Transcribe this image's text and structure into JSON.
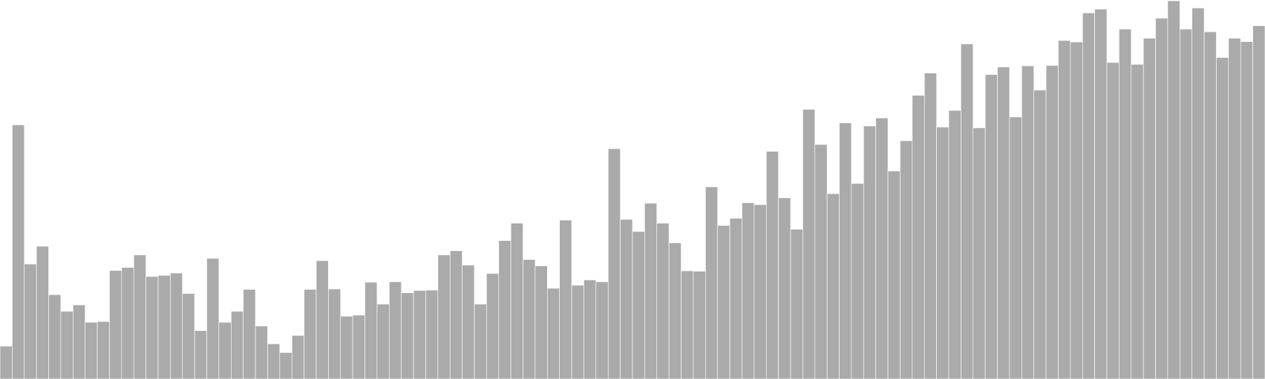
{
  "chart_data": {
    "type": "bar",
    "title": "",
    "xlabel": "",
    "ylabel": "",
    "ylim": [
      0,
      100
    ],
    "bar_color": "#aaaaaa",
    "values": [
      8.7,
      67.2,
      30.4,
      35.1,
      22.3,
      17.9,
      19.6,
      15.0,
      15.2,
      28.7,
      29.5,
      32.8,
      27.1,
      27.4,
      28.0,
      22.6,
      12.8,
      31.9,
      15.0,
      17.9,
      23.7,
      14.0,
      9.3,
      7.0,
      11.5,
      23.7,
      31.3,
      23.8,
      16.6,
      16.9,
      25.6,
      19.8,
      25.7,
      22.8,
      23.4,
      23.5,
      32.8,
      33.9,
      30.1,
      19.8,
      27.9,
      36.6,
      41.2,
      31.6,
      29.9,
      24.0,
      42.0,
      24.8,
      26.2,
      25.7,
      60.9,
      42.2,
      39.0,
      46.5,
      41.2,
      36.0,
      28.6,
      28.5,
      50.8,
      40.6,
      42.5,
      46.6,
      46.1,
      60.2,
      47.9,
      39.6,
      71.3,
      62.0,
      49.0,
      67.7,
      51.7,
      66.9,
      69.0,
      55.0,
      63.0,
      75.0,
      80.9,
      66.6,
      71.0,
      88.6,
      66.4,
      80.5,
      82.5,
      69.3,
      82.8,
      76.4,
      82.9,
      89.5,
      89.1,
      96.8,
      97.8,
      83.7,
      92.5,
      83.2,
      90.1,
      95.4,
      100.0,
      92.5,
      98.1,
      91.8,
      85.0,
      90.1,
      89.2,
      93.4
    ]
  }
}
